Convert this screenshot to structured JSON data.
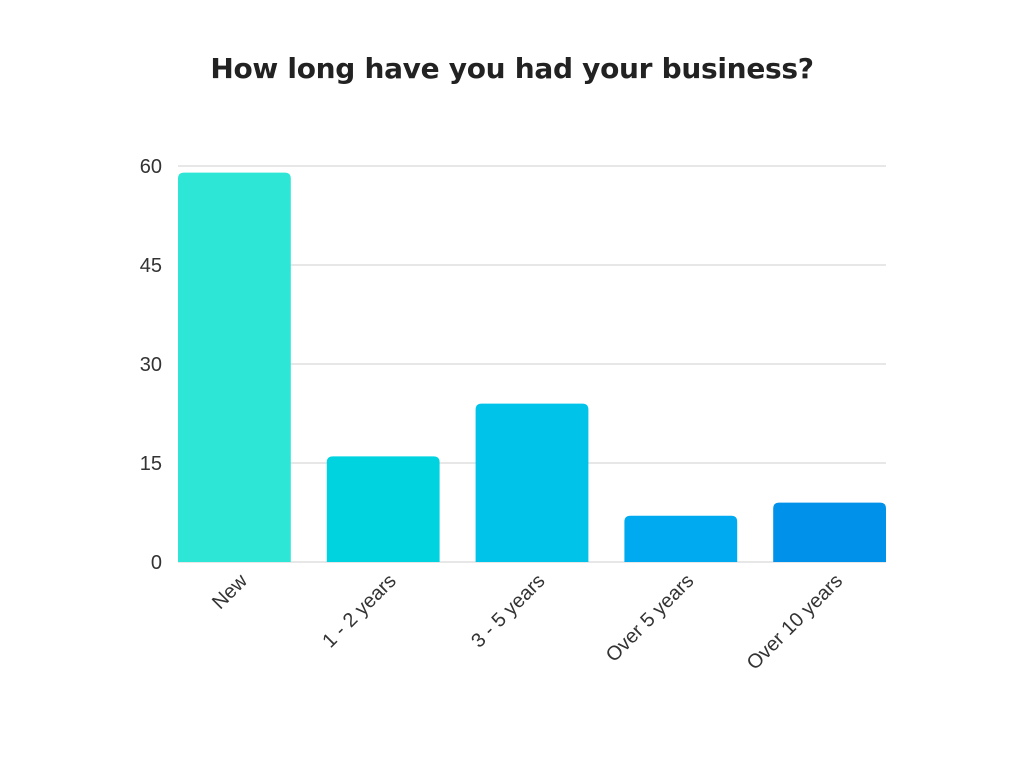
{
  "chart_data": {
    "type": "bar",
    "title": "How long have you had your business?",
    "xlabel": "",
    "ylabel": "",
    "categories": [
      "New",
      "1 - 2 years",
      "3 - 5 years",
      "Over 5 years",
      "Over 10 years"
    ],
    "values": [
      59,
      16,
      24,
      7,
      9
    ],
    "ylim": [
      0,
      60
    ],
    "yticks": [
      0,
      15,
      30,
      45,
      60
    ],
    "grid": true,
    "legend": "none",
    "bar_colors": [
      "#2ee6d6",
      "#00d3e0",
      "#00c3ea",
      "#00aaf0",
      "#0092ea"
    ],
    "grid_color": "#cfcfcf",
    "text_color": "#333333",
    "title_color": "#222222"
  }
}
